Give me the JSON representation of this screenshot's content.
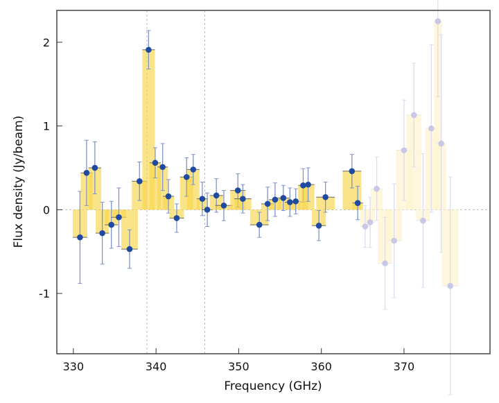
{
  "chart_data": {
    "type": "bar",
    "title": "",
    "xlabel": "Frequency (GHz)",
    "ylabel": "Flux density (Jy/beam)",
    "xlim": [
      328.0,
      380.4
    ],
    "ylim": [
      -1.72,
      2.38
    ],
    "xticks": [
      330,
      340,
      350,
      360,
      370
    ],
    "yticks": [
      -1,
      0,
      1,
      2
    ],
    "grid": false,
    "reference_lines_x": [
      338.9,
      345.9
    ],
    "reference_line_y": 0,
    "colors": {
      "bar": "#f7d54a",
      "point": "#1f4aa0",
      "errorbar": "#7f93c4",
      "faded_point": "#c8c8e6",
      "faded_bar": "#fdf3cf"
    },
    "points": [
      {
        "x": 330.8,
        "y": -0.33,
        "err": 0.55,
        "faded": false
      },
      {
        "x": 331.6,
        "y": 0.44,
        "err": 0.39,
        "faded": false
      },
      {
        "x": 332.6,
        "y": 0.5,
        "err": 0.31,
        "faded": false
      },
      {
        "x": 333.5,
        "y": -0.28,
        "err": 0.37,
        "faded": false
      },
      {
        "x": 334.6,
        "y": -0.18,
        "err": 0.28,
        "faded": false
      },
      {
        "x": 335.5,
        "y": -0.09,
        "err": 0.35,
        "faded": false
      },
      {
        "x": 336.8,
        "y": -0.47,
        "err": 0.23,
        "faded": false
      },
      {
        "x": 338.0,
        "y": 0.34,
        "err": 0.23,
        "faded": false
      },
      {
        "x": 339.1,
        "y": 1.91,
        "err": 0.23,
        "faded": false
      },
      {
        "x": 339.9,
        "y": 0.56,
        "err": 0.18,
        "faded": false
      },
      {
        "x": 340.8,
        "y": 0.51,
        "err": 0.28,
        "faded": false
      },
      {
        "x": 341.5,
        "y": 0.16,
        "err": 0.2,
        "faded": false
      },
      {
        "x": 342.5,
        "y": -0.1,
        "err": 0.17,
        "faded": false
      },
      {
        "x": 343.7,
        "y": 0.39,
        "err": 0.23,
        "faded": false
      },
      {
        "x": 344.5,
        "y": 0.48,
        "err": 0.18,
        "faded": false
      },
      {
        "x": 345.6,
        "y": 0.13,
        "err": 0.2,
        "faded": false
      },
      {
        "x": 346.2,
        "y": 0.0,
        "err": 0.2,
        "faded": false
      },
      {
        "x": 347.3,
        "y": 0.17,
        "err": 0.2,
        "faded": false
      },
      {
        "x": 348.2,
        "y": 0.05,
        "err": 0.18,
        "faded": false
      },
      {
        "x": 349.9,
        "y": 0.23,
        "err": 0.2,
        "faded": false
      },
      {
        "x": 350.5,
        "y": 0.13,
        "err": 0.17,
        "faded": false
      },
      {
        "x": 352.5,
        "y": -0.18,
        "err": 0.15,
        "faded": false
      },
      {
        "x": 353.5,
        "y": 0.07,
        "err": 0.2,
        "faded": false
      },
      {
        "x": 354.4,
        "y": 0.12,
        "err": 0.2,
        "faded": false
      },
      {
        "x": 355.4,
        "y": 0.14,
        "err": 0.15,
        "faded": false
      },
      {
        "x": 356.2,
        "y": 0.09,
        "err": 0.17,
        "faded": false
      },
      {
        "x": 356.9,
        "y": 0.1,
        "err": 0.15,
        "faded": false
      },
      {
        "x": 357.8,
        "y": 0.29,
        "err": 0.2,
        "faded": false
      },
      {
        "x": 358.4,
        "y": 0.3,
        "err": 0.2,
        "faded": false
      },
      {
        "x": 359.7,
        "y": -0.19,
        "err": 0.18,
        "faded": false
      },
      {
        "x": 360.5,
        "y": 0.15,
        "err": 0.18,
        "faded": false
      },
      {
        "x": 363.7,
        "y": 0.46,
        "err": 0.2,
        "faded": false
      },
      {
        "x": 364.4,
        "y": 0.08,
        "err": 0.2,
        "faded": false
      },
      {
        "x": 365.3,
        "y": -0.2,
        "err": 0.25,
        "faded": true
      },
      {
        "x": 365.9,
        "y": -0.15,
        "err": 0.3,
        "faded": true
      },
      {
        "x": 366.7,
        "y": 0.25,
        "err": 0.38,
        "faded": true
      },
      {
        "x": 367.7,
        "y": -0.64,
        "err": 0.55,
        "faded": true
      },
      {
        "x": 368.8,
        "y": -0.37,
        "err": 0.68,
        "faded": true
      },
      {
        "x": 370.0,
        "y": 0.71,
        "err": 0.6,
        "faded": true
      },
      {
        "x": 371.2,
        "y": 1.13,
        "err": 0.62,
        "faded": true
      },
      {
        "x": 372.3,
        "y": -0.13,
        "err": 0.8,
        "faded": true
      },
      {
        "x": 373.3,
        "y": 0.97,
        "err": 1.0,
        "faded": true
      },
      {
        "x": 374.1,
        "y": 2.25,
        "err": 0.9,
        "faded": true
      },
      {
        "x": 374.5,
        "y": 0.79,
        "err": 1.3,
        "faded": true
      },
      {
        "x": 375.6,
        "y": -0.91,
        "err": 1.3,
        "faded": true
      }
    ]
  }
}
